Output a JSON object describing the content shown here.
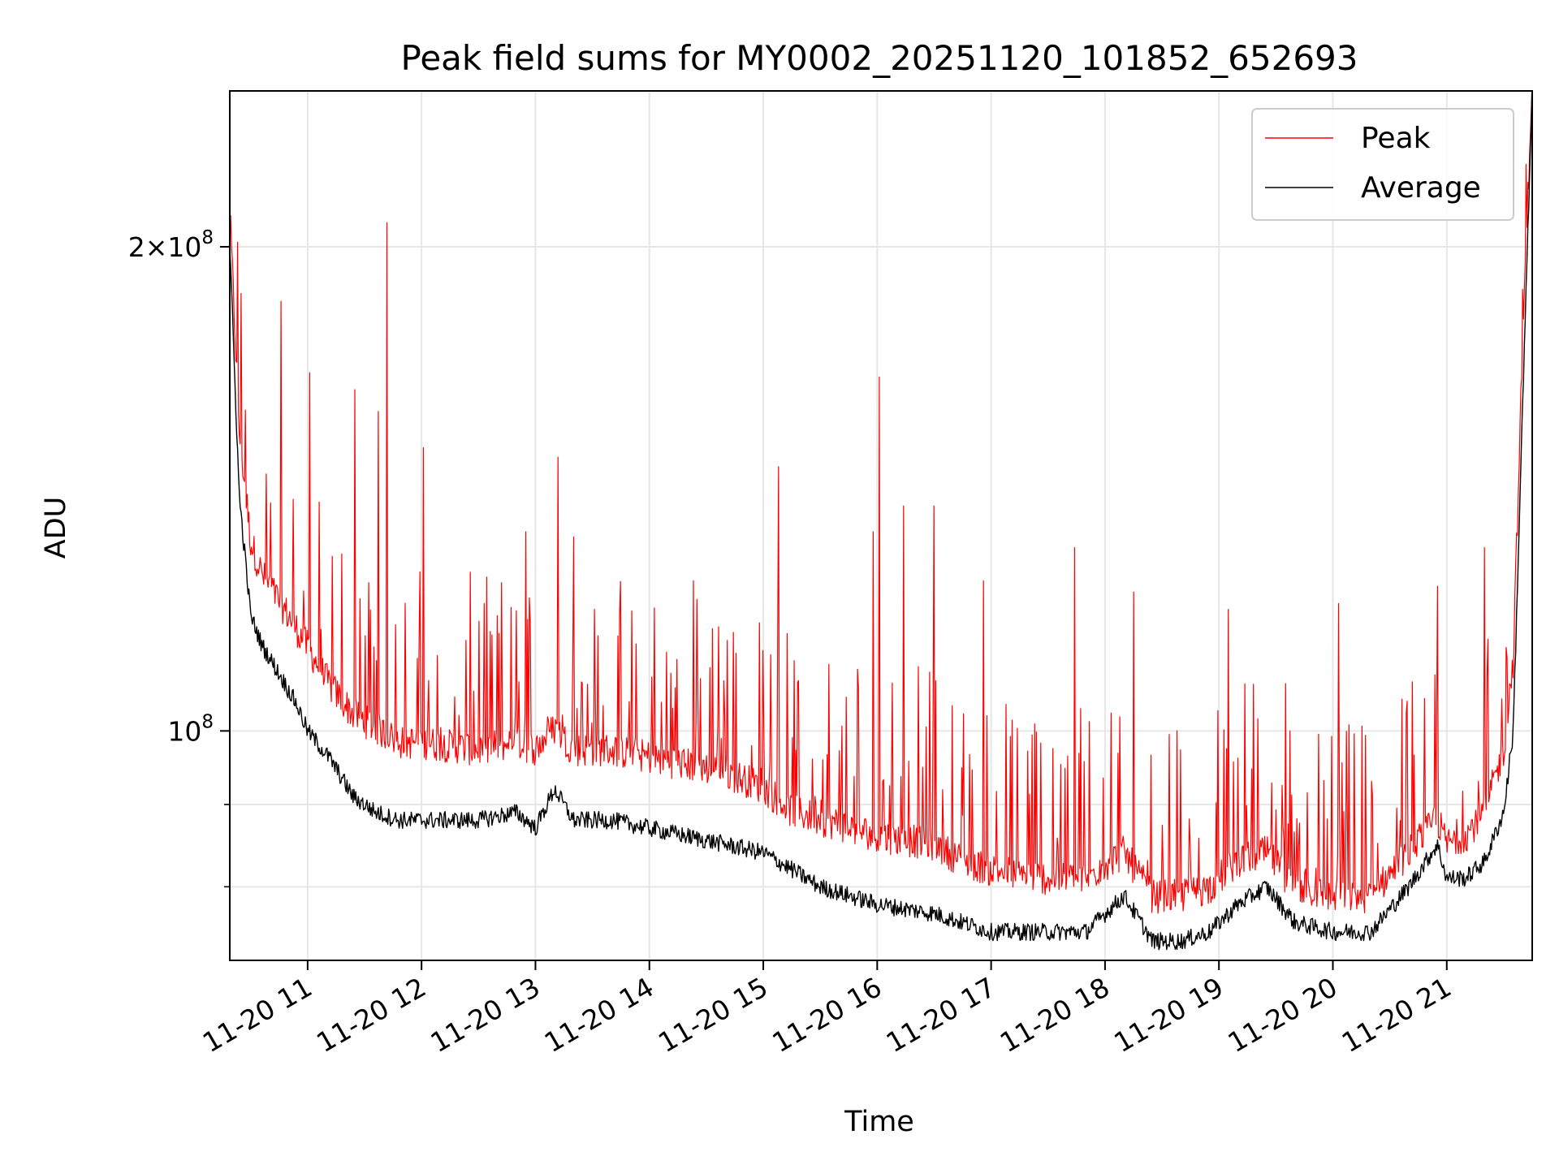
{
  "chart_data": {
    "type": "line",
    "title": "Peak field sums for MY0002_20251120_101852_652693",
    "xlabel": "Time",
    "ylabel": "ADU",
    "yscale": "log",
    "xlim": [
      "2025-11-20T10:19",
      "2025-11-20T21:45"
    ],
    "ylim": [
      72000000,
      250000000
    ],
    "x_ticks": [
      {
        "label": "11-20 11",
        "value": "2025-11-20T11:00"
      },
      {
        "label": "11-20 12",
        "value": "2025-11-20T12:00"
      },
      {
        "label": "11-20 13",
        "value": "2025-11-20T13:00"
      },
      {
        "label": "11-20 14",
        "value": "2025-11-20T14:00"
      },
      {
        "label": "11-20 15",
        "value": "2025-11-20T15:00"
      },
      {
        "label": "11-20 16",
        "value": "2025-11-20T16:00"
      },
      {
        "label": "11-20 17",
        "value": "2025-11-20T17:00"
      },
      {
        "label": "11-20 18",
        "value": "2025-11-20T18:00"
      },
      {
        "label": "11-20 19",
        "value": "2025-11-20T19:00"
      },
      {
        "label": "11-20 20",
        "value": "2025-11-20T20:00"
      },
      {
        "label": "11-20 21",
        "value": "2025-11-20T21:00"
      }
    ],
    "y_ticks_major": [
      {
        "label_base": "2",
        "label_exp": "8",
        "value": 200000000
      },
      {
        "label_base": "",
        "label_exp": "8",
        "value": 100000000
      }
    ],
    "y_ticks_minor": [
      90000000,
      80000000
    ],
    "grid": true,
    "legend_position": "top-right",
    "series": [
      {
        "name": "Peak",
        "color": "#ff0000",
        "x": [
          "2025-11-20T10:19",
          "2025-11-20T10:24",
          "2025-11-20T10:30",
          "2025-11-20T10:36",
          "2025-11-20T10:42",
          "2025-11-20T10:48",
          "2025-11-20T10:54",
          "2025-11-20T11:00",
          "2025-11-20T11:12",
          "2025-11-20T11:24",
          "2025-11-20T11:36",
          "2025-11-20T11:48",
          "2025-11-20T12:00",
          "2025-11-20T12:30",
          "2025-11-20T12:50",
          "2025-11-20T13:00",
          "2025-11-20T13:10",
          "2025-11-20T13:20",
          "2025-11-20T13:40",
          "2025-11-20T14:00",
          "2025-11-20T14:20",
          "2025-11-20T14:40",
          "2025-11-20T15:00",
          "2025-11-20T15:15",
          "2025-11-20T15:30",
          "2025-11-20T15:45",
          "2025-11-20T16:00",
          "2025-11-20T16:30",
          "2025-11-20T16:45",
          "2025-11-20T17:00",
          "2025-11-20T17:30",
          "2025-11-20T17:50",
          "2025-11-20T18:10",
          "2025-11-20T18:25",
          "2025-11-20T18:40",
          "2025-11-20T18:55",
          "2025-11-20T19:10",
          "2025-11-20T19:25",
          "2025-11-20T19:40",
          "2025-11-20T20:00",
          "2025-11-20T20:20",
          "2025-11-20T20:40",
          "2025-11-20T20:55",
          "2025-11-20T21:00",
          "2025-11-20T21:10",
          "2025-11-20T21:20",
          "2025-11-20T21:30",
          "2025-11-20T21:35",
          "2025-11-20T21:40",
          "2025-11-20T21:45"
        ],
        "y": [
          205000000,
          150000000,
          128000000,
          122000000,
          119000000,
          116000000,
          113000000,
          110000000,
          104000000,
          100000000,
          98000000,
          96000000,
          96000000,
          95000000,
          96000000,
          95000000,
          98000000,
          95000000,
          95000000,
          94000000,
          93000000,
          92000000,
          90000000,
          87000000,
          86000000,
          85000000,
          84000000,
          83000000,
          81000000,
          80000000,
          79000000,
          79000000,
          82000000,
          77000000,
          77000000,
          78000000,
          81000000,
          82000000,
          78000000,
          77000000,
          77000000,
          82000000,
          86000000,
          83000000,
          84000000,
          87000000,
          95000000,
          108000000,
          170000000,
          250000000
        ],
        "spikes": [
          {
            "x": "2025-11-20T10:46",
            "y": 185000000
          },
          {
            "x": "2025-11-20T11:01",
            "y": 167000000
          },
          {
            "x": "2025-11-20T11:25",
            "y": 163000000
          },
          {
            "x": "2025-11-20T11:37",
            "y": 158000000
          },
          {
            "x": "2025-11-20T11:42",
            "y": 207000000
          },
          {
            "x": "2025-11-20T12:01",
            "y": 150000000
          },
          {
            "x": "2025-11-20T12:55",
            "y": 133000000
          },
          {
            "x": "2025-11-20T13:12",
            "y": 148000000
          },
          {
            "x": "2025-11-20T13:20",
            "y": 132000000
          },
          {
            "x": "2025-11-20T14:23",
            "y": 124000000
          },
          {
            "x": "2025-11-20T15:08",
            "y": 146000000
          },
          {
            "x": "2025-11-20T15:58",
            "y": 133000000
          },
          {
            "x": "2025-11-20T16:01",
            "y": 166000000
          },
          {
            "x": "2025-11-20T16:14",
            "y": 138000000
          },
          {
            "x": "2025-11-20T16:30",
            "y": 138000000
          },
          {
            "x": "2025-11-20T16:56",
            "y": 124000000
          },
          {
            "x": "2025-11-20T17:44",
            "y": 130000000
          },
          {
            "x": "2025-11-20T18:15",
            "y": 122000000
          },
          {
            "x": "2025-11-20T19:05",
            "y": 119000000
          },
          {
            "x": "2025-11-20T19:35",
            "y": 107000000
          },
          {
            "x": "2025-11-20T20:03",
            "y": 120000000
          },
          {
            "x": "2025-11-20T20:55",
            "y": 123000000
          },
          {
            "x": "2025-11-20T21:20",
            "y": 130000000
          }
        ]
      },
      {
        "name": "Average",
        "color": "#000000",
        "x": [
          "2025-11-20T10:19",
          "2025-11-20T10:24",
          "2025-11-20T10:30",
          "2025-11-20T10:36",
          "2025-11-20T10:42",
          "2025-11-20T10:48",
          "2025-11-20T10:54",
          "2025-11-20T11:00",
          "2025-11-20T11:12",
          "2025-11-20T11:24",
          "2025-11-20T11:36",
          "2025-11-20T11:48",
          "2025-11-20T12:00",
          "2025-11-20T12:30",
          "2025-11-20T12:50",
          "2025-11-20T13:00",
          "2025-11-20T13:10",
          "2025-11-20T13:20",
          "2025-11-20T13:40",
          "2025-11-20T14:00",
          "2025-11-20T14:20",
          "2025-11-20T14:40",
          "2025-11-20T15:00",
          "2025-11-20T15:15",
          "2025-11-20T15:30",
          "2025-11-20T15:45",
          "2025-11-20T16:00",
          "2025-11-20T16:30",
          "2025-11-20T16:45",
          "2025-11-20T17:00",
          "2025-11-20T17:30",
          "2025-11-20T17:50",
          "2025-11-20T18:10",
          "2025-11-20T18:25",
          "2025-11-20T18:40",
          "2025-11-20T18:55",
          "2025-11-20T19:10",
          "2025-11-20T19:25",
          "2025-11-20T19:40",
          "2025-11-20T20:00",
          "2025-11-20T20:20",
          "2025-11-20T20:40",
          "2025-11-20T20:55",
          "2025-11-20T21:00",
          "2025-11-20T21:10",
          "2025-11-20T21:20",
          "2025-11-20T21:30",
          "2025-11-20T21:35",
          "2025-11-20T21:40",
          "2025-11-20T21:45"
        ],
        "y": [
          200000000,
          140000000,
          118000000,
          113000000,
          110000000,
          107000000,
          104000000,
          100000000,
          96000000,
          91000000,
          89000000,
          88000000,
          88000000,
          88000000,
          89000000,
          87000000,
          92000000,
          88000000,
          88000000,
          87000000,
          86000000,
          85000000,
          84000000,
          82000000,
          80000000,
          79000000,
          78000000,
          77000000,
          76000000,
          75000000,
          75000000,
          75000000,
          79000000,
          74000000,
          74000000,
          75000000,
          78000000,
          80000000,
          76000000,
          75000000,
          75000000,
          80000000,
          85000000,
          81000000,
          81000000,
          83000000,
          89000000,
          100000000,
          160000000,
          250000000
        ]
      }
    ]
  }
}
